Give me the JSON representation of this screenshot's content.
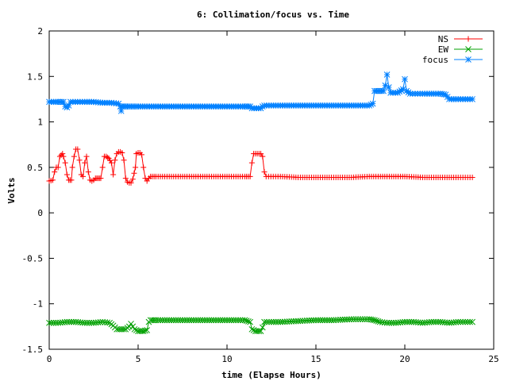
{
  "chart_data": {
    "type": "line",
    "title": "6: Collimation/focus vs. Time",
    "xlabel": "time (Elapse Hours)",
    "ylabel": "Volts",
    "xlim": [
      0,
      25
    ],
    "ylim": [
      -1.5,
      2
    ],
    "xticks": [
      0,
      5,
      10,
      15,
      20,
      25
    ],
    "yticks": [
      -1.5,
      -1,
      -0.5,
      0,
      0.5,
      1,
      1.5,
      2
    ],
    "xtick_labels": [
      "0",
      "5",
      "10",
      "15",
      "20",
      "25"
    ],
    "ytick_labels": [
      "-1.5",
      "-1",
      "-0.5",
      "0",
      "0.5",
      "1",
      "1.5",
      "2"
    ],
    "grid": false,
    "legend_position": "top-right",
    "series": [
      {
        "name": "NS",
        "color": "#ff0000",
        "marker": "plus",
        "points": [
          [
            0,
            0.35
          ],
          [
            0.2,
            0.36
          ],
          [
            0.3,
            0.45
          ],
          [
            0.4,
            0.5
          ],
          [
            0.5,
            0.5
          ],
          [
            0.6,
            0.62
          ],
          [
            0.75,
            0.65
          ],
          [
            0.8,
            0.62
          ],
          [
            0.9,
            0.55
          ],
          [
            1.0,
            0.42
          ],
          [
            1.1,
            0.36
          ],
          [
            1.25,
            0.36
          ],
          [
            1.3,
            0.5
          ],
          [
            1.4,
            0.62
          ],
          [
            1.5,
            0.7
          ],
          [
            1.6,
            0.7
          ],
          [
            1.7,
            0.58
          ],
          [
            1.8,
            0.42
          ],
          [
            1.9,
            0.4
          ],
          [
            2.0,
            0.55
          ],
          [
            2.1,
            0.62
          ],
          [
            2.2,
            0.45
          ],
          [
            2.3,
            0.36
          ],
          [
            2.4,
            0.35
          ],
          [
            2.5,
            0.36
          ],
          [
            2.6,
            0.38
          ],
          [
            2.75,
            0.38
          ],
          [
            2.9,
            0.38
          ],
          [
            3.0,
            0.5
          ],
          [
            3.1,
            0.62
          ],
          [
            3.2,
            0.62
          ],
          [
            3.35,
            0.6
          ],
          [
            3.5,
            0.55
          ],
          [
            3.6,
            0.42
          ],
          [
            3.7,
            0.58
          ],
          [
            3.8,
            0.65
          ],
          [
            3.9,
            0.67
          ],
          [
            4.0,
            0.67
          ],
          [
            4.1,
            0.66
          ],
          [
            4.2,
            0.58
          ],
          [
            4.3,
            0.38
          ],
          [
            4.4,
            0.34
          ],
          [
            4.5,
            0.33
          ],
          [
            4.6,
            0.33
          ],
          [
            4.7,
            0.37
          ],
          [
            4.85,
            0.5
          ],
          [
            4.9,
            0.65
          ],
          [
            5.0,
            0.66
          ],
          [
            5.1,
            0.66
          ],
          [
            5.2,
            0.64
          ],
          [
            5.3,
            0.5
          ],
          [
            5.4,
            0.38
          ],
          [
            5.5,
            0.35
          ],
          [
            5.6,
            0.38
          ],
          [
            5.7,
            0.4
          ],
          [
            6,
            0.4
          ],
          [
            7,
            0.4
          ],
          [
            8,
            0.4
          ],
          [
            9,
            0.4
          ],
          [
            10,
            0.4
          ],
          [
            11,
            0.4
          ],
          [
            11.3,
            0.4
          ],
          [
            11.4,
            0.55
          ],
          [
            11.5,
            0.65
          ],
          [
            11.7,
            0.65
          ],
          [
            11.9,
            0.65
          ],
          [
            12.0,
            0.62
          ],
          [
            12.1,
            0.45
          ],
          [
            12.2,
            0.4
          ],
          [
            13,
            0.4
          ],
          [
            14,
            0.39
          ],
          [
            15,
            0.39
          ],
          [
            16,
            0.39
          ],
          [
            17,
            0.39
          ],
          [
            18,
            0.4
          ],
          [
            19,
            0.4
          ],
          [
            20,
            0.4
          ],
          [
            21,
            0.39
          ],
          [
            22,
            0.39
          ],
          [
            23,
            0.39
          ],
          [
            23.8,
            0.39
          ]
        ]
      },
      {
        "name": "EW",
        "color": "#00a000",
        "marker": "cross",
        "points": [
          [
            0,
            -1.21
          ],
          [
            0.5,
            -1.21
          ],
          [
            1,
            -1.2
          ],
          [
            1.5,
            -1.2
          ],
          [
            2,
            -1.21
          ],
          [
            2.5,
            -1.21
          ],
          [
            3,
            -1.2
          ],
          [
            3.4,
            -1.21
          ],
          [
            3.6,
            -1.24
          ],
          [
            3.8,
            -1.28
          ],
          [
            4.1,
            -1.28
          ],
          [
            4.3,
            -1.28
          ],
          [
            4.5,
            -1.25
          ],
          [
            4.6,
            -1.22
          ],
          [
            4.8,
            -1.28
          ],
          [
            5.0,
            -1.3
          ],
          [
            5.3,
            -1.3
          ],
          [
            5.5,
            -1.29
          ],
          [
            5.6,
            -1.2
          ],
          [
            5.7,
            -1.18
          ],
          [
            6,
            -1.18
          ],
          [
            7,
            -1.18
          ],
          [
            8,
            -1.18
          ],
          [
            9,
            -1.18
          ],
          [
            10,
            -1.18
          ],
          [
            11,
            -1.18
          ],
          [
            11.3,
            -1.2
          ],
          [
            11.4,
            -1.28
          ],
          [
            11.6,
            -1.3
          ],
          [
            11.9,
            -1.3
          ],
          [
            12.0,
            -1.26
          ],
          [
            12.1,
            -1.2
          ],
          [
            12.5,
            -1.2
          ],
          [
            13,
            -1.2
          ],
          [
            14,
            -1.19
          ],
          [
            15,
            -1.18
          ],
          [
            16,
            -1.18
          ],
          [
            17,
            -1.17
          ],
          [
            18,
            -1.17
          ],
          [
            18.3,
            -1.18
          ],
          [
            18.6,
            -1.2
          ],
          [
            19,
            -1.21
          ],
          [
            19.5,
            -1.21
          ],
          [
            20,
            -1.2
          ],
          [
            20.5,
            -1.2
          ],
          [
            21,
            -1.21
          ],
          [
            21.5,
            -1.2
          ],
          [
            22,
            -1.2
          ],
          [
            22.5,
            -1.21
          ],
          [
            23,
            -1.2
          ],
          [
            23.8,
            -1.2
          ]
        ]
      },
      {
        "name": "focus",
        "color": "#0080ff",
        "marker": "star",
        "points": [
          [
            0,
            1.22
          ],
          [
            0.5,
            1.22
          ],
          [
            0.8,
            1.22
          ],
          [
            0.9,
            1.17
          ],
          [
            1.0,
            1.16
          ],
          [
            1.1,
            1.18
          ],
          [
            1.2,
            1.22
          ],
          [
            2,
            1.22
          ],
          [
            2.5,
            1.22
          ],
          [
            3,
            1.21
          ],
          [
            3.5,
            1.21
          ],
          [
            3.9,
            1.2
          ],
          [
            4.0,
            1.17
          ],
          [
            4.05,
            1.12
          ],
          [
            4.1,
            1.17
          ],
          [
            4.3,
            1.17
          ],
          [
            5,
            1.17
          ],
          [
            6,
            1.17
          ],
          [
            7,
            1.17
          ],
          [
            8,
            1.17
          ],
          [
            9,
            1.17
          ],
          [
            10,
            1.17
          ],
          [
            11,
            1.17
          ],
          [
            11.3,
            1.17
          ],
          [
            11.4,
            1.15
          ],
          [
            11.9,
            1.15
          ],
          [
            12.0,
            1.17
          ],
          [
            12.1,
            1.18
          ],
          [
            13,
            1.18
          ],
          [
            14,
            1.18
          ],
          [
            15,
            1.18
          ],
          [
            16,
            1.18
          ],
          [
            17,
            1.18
          ],
          [
            18,
            1.18
          ],
          [
            18.2,
            1.2
          ],
          [
            18.3,
            1.34
          ],
          [
            18.5,
            1.34
          ],
          [
            18.8,
            1.34
          ],
          [
            18.9,
            1.4
          ],
          [
            19.0,
            1.52
          ],
          [
            19.1,
            1.38
          ],
          [
            19.2,
            1.32
          ],
          [
            19.6,
            1.32
          ],
          [
            19.9,
            1.36
          ],
          [
            20.0,
            1.47
          ],
          [
            20.1,
            1.34
          ],
          [
            20.3,
            1.31
          ],
          [
            21,
            1.31
          ],
          [
            21.5,
            1.31
          ],
          [
            22,
            1.31
          ],
          [
            22.3,
            1.3
          ],
          [
            22.5,
            1.25
          ],
          [
            23,
            1.25
          ],
          [
            23.8,
            1.25
          ]
        ]
      }
    ]
  }
}
